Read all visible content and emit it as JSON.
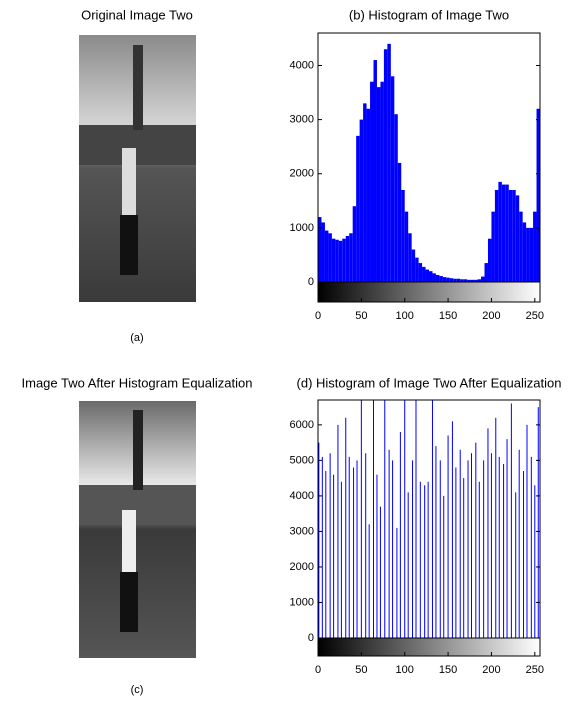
{
  "images": [
    {
      "title": "Original Image Two",
      "caption": "(a)"
    },
    {
      "title": "Image Two After Histogram Equalization",
      "caption": "(c)"
    }
  ],
  "chart_data": [
    {
      "type": "histogram",
      "title": "(b) Histogram of Image Two",
      "color": "#0000ff",
      "bins": [
        0,
        4,
        8,
        12,
        16,
        20,
        24,
        28,
        32,
        36,
        40,
        44,
        48,
        52,
        56,
        60,
        64,
        68,
        72,
        76,
        80,
        84,
        88,
        92,
        96,
        100,
        104,
        108,
        112,
        116,
        120,
        124,
        128,
        132,
        136,
        140,
        144,
        148,
        152,
        156,
        160,
        164,
        168,
        172,
        176,
        180,
        184,
        188,
        192,
        196,
        200,
        204,
        208,
        212,
        216,
        220,
        224,
        228,
        232,
        236,
        240,
        244,
        248,
        252,
        256
      ],
      "values": [
        1200,
        1100,
        950,
        900,
        800,
        780,
        760,
        800,
        850,
        900,
        1400,
        2700,
        3000,
        3300,
        3200,
        3700,
        4100,
        3600,
        3700,
        4300,
        4400,
        3800,
        3100,
        2200,
        1700,
        1300,
        900,
        600,
        450,
        350,
        280,
        230,
        200,
        160,
        130,
        110,
        90,
        80,
        70,
        60,
        60,
        50,
        50,
        40,
        40,
        40,
        50,
        100,
        350,
        800,
        1300,
        1700,
        1850,
        1800,
        1800,
        1700,
        1700,
        1600,
        1300,
        1100,
        1000,
        1000,
        1300,
        3200
      ],
      "xlim": [
        0,
        256
      ],
      "xticks": [
        0,
        50,
        100,
        150,
        200,
        250
      ],
      "ylim": [
        0,
        4600
      ],
      "yticks": [
        0,
        1000,
        2000,
        3000,
        4000
      ]
    },
    {
      "type": "stem",
      "title": "(d) Histogram of Image Two After Equalization",
      "color": "#0000ff",
      "x": [
        1,
        5,
        9,
        14,
        18,
        23,
        27,
        32,
        36,
        41,
        45,
        50,
        55,
        59,
        64,
        68,
        72,
        77,
        82,
        86,
        91,
        95,
        100,
        104,
        109,
        113,
        118,
        123,
        127,
        132,
        136,
        141,
        145,
        150,
        155,
        159,
        164,
        168,
        173,
        177,
        182,
        186,
        191,
        196,
        200,
        205,
        209,
        214,
        218,
        223,
        228,
        232,
        237,
        241,
        246,
        250,
        254
      ],
      "values": [
        5500,
        5100,
        4700,
        5200,
        4600,
        6000,
        4400,
        6200,
        5100,
        4800,
        5000,
        6700,
        5200,
        3200,
        6700,
        4600,
        3700,
        6700,
        5300,
        5000,
        3100,
        5800,
        6700,
        4100,
        5000,
        6700,
        4400,
        4300,
        4400,
        6700,
        5400,
        5000,
        4000,
        5700,
        6100,
        4800,
        5300,
        4500,
        5000,
        5200,
        5500,
        4400,
        5000,
        5900,
        5200,
        6200,
        5100,
        4900,
        5600,
        6600,
        4100,
        5300,
        4700,
        6000,
        5100,
        4300,
        6500
      ],
      "xlim": [
        0,
        256
      ],
      "xticks": [
        0,
        50,
        100,
        150,
        200,
        250
      ],
      "ylim": [
        0,
        6700
      ],
      "yticks": [
        0,
        1000,
        2000,
        3000,
        4000,
        5000,
        6000
      ]
    }
  ]
}
